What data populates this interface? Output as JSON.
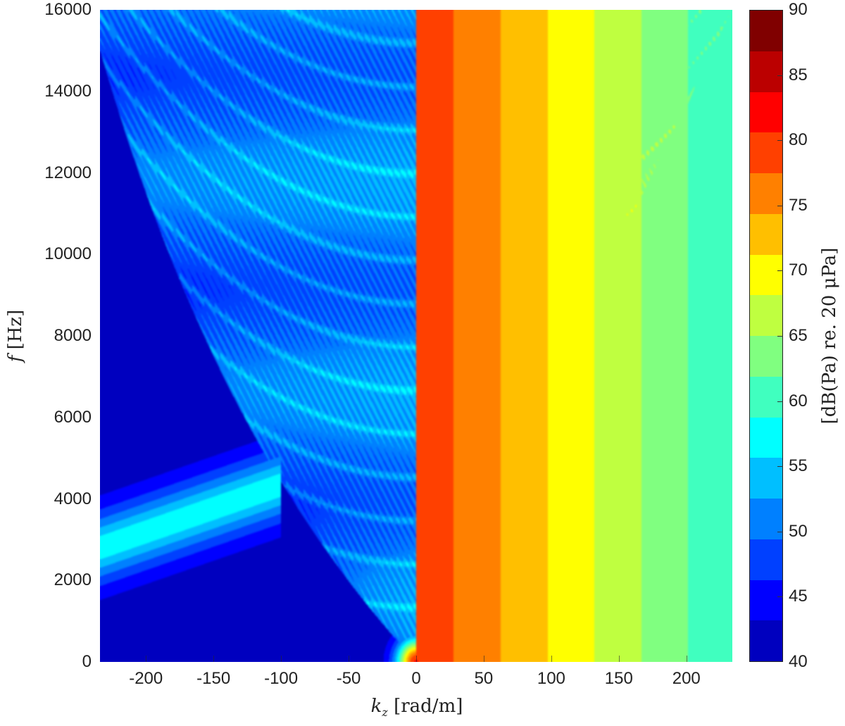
{
  "chart_data": {
    "type": "heatmap",
    "title": "",
    "xlabel": "[rad/m]",
    "xlabel_symbol": "k",
    "xlabel_subscript": "z",
    "ylabel": "[Hz]",
    "ylabel_symbol": "f",
    "xlim": [
      -234,
      234
    ],
    "ylim": [
      0,
      16000
    ],
    "xticks": [
      -200,
      -150,
      -100,
      -50,
      0,
      50,
      100,
      150,
      200
    ],
    "yticks": [
      0,
      2000,
      4000,
      6000,
      8000,
      10000,
      12000,
      14000,
      16000
    ],
    "colorbar": {
      "label": "[dB(Pa) re. 20 μPa]",
      "range": [
        40,
        90
      ],
      "ticks": [
        40,
        45,
        50,
        55,
        60,
        65,
        70,
        75,
        80,
        85,
        90
      ],
      "levels": 16,
      "colors": [
        "#0000BF",
        "#0000FF",
        "#0040FF",
        "#0080FF",
        "#00BFFF",
        "#00FFFF",
        "#40FFBF",
        "#80FF80",
        "#BFFF40",
        "#FFFF00",
        "#FFBF00",
        "#FF8000",
        "#FF4000",
        "#FF0000",
        "#BB0000",
        "#800000"
      ]
    },
    "features": [
      {
        "name": "background",
        "level_db": 41
      },
      {
        "name": "right cone edge (sound line)",
        "from": [
          0,
          0
        ],
        "to": [
          234,
          16000
        ],
        "level_db": [
          75,
          58
        ]
      },
      {
        "name": "left cone edge",
        "from": [
          0,
          0
        ],
        "to": [
          -230,
          11000
        ],
        "level_db": 53
      },
      {
        "name": "low-frequency right branch",
        "from": [
          0,
          0
        ],
        "to": [
          234,
          2800
        ],
        "level_db": [
          80,
          58
        ]
      },
      {
        "name": "left low-frequency band",
        "from": [
          -234,
          2800
        ],
        "to": [
          -110,
          4300
        ],
        "level_db": 56
      },
      {
        "name": "parabolic mode arcs inside cone",
        "level_db": 55
      }
    ]
  }
}
